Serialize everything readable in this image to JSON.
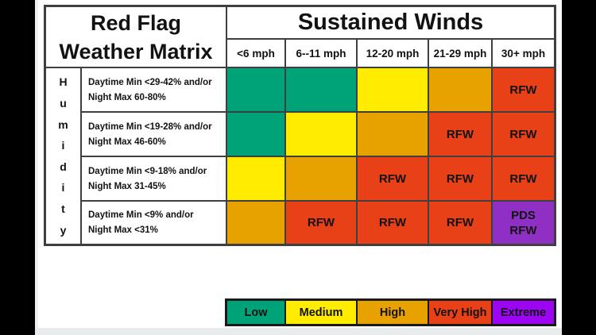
{
  "title": {
    "line1": "Red Flag",
    "line2": "Weather Matrix"
  },
  "winds": {
    "header": "Sustained Winds",
    "columns": [
      "<6 mph",
      "6--11 mph",
      "12-20 mph",
      "21-29 mph",
      "30+ mph"
    ]
  },
  "humidity": {
    "word": "Humidity",
    "letters": [
      "H",
      "u",
      "m",
      "i",
      "d",
      "i",
      "t",
      "y"
    ]
  },
  "rows": [
    {
      "criteria": {
        "line1": "Daytime Min <29-42% and/or",
        "line2": "Night Max 60-80%"
      },
      "cells": [
        {
          "level": "low",
          "label": ""
        },
        {
          "level": "low",
          "label": ""
        },
        {
          "level": "medium",
          "label": ""
        },
        {
          "level": "high",
          "label": ""
        },
        {
          "level": "very_high",
          "label": "RFW"
        }
      ]
    },
    {
      "criteria": {
        "line1": "Daytime Min <19-28% and/or",
        "line2": "Night Max 46-60%"
      },
      "cells": [
        {
          "level": "low",
          "label": ""
        },
        {
          "level": "medium",
          "label": ""
        },
        {
          "level": "high",
          "label": ""
        },
        {
          "level": "very_high",
          "label": "RFW"
        },
        {
          "level": "very_high",
          "label": "RFW"
        }
      ]
    },
    {
      "criteria": {
        "line1": "Daytime Min <9-18% and/or",
        "line2": "Night Max 31-45%"
      },
      "cells": [
        {
          "level": "medium",
          "label": ""
        },
        {
          "level": "high",
          "label": ""
        },
        {
          "level": "very_high",
          "label": "RFW"
        },
        {
          "level": "very_high",
          "label": "RFW"
        },
        {
          "level": "very_high",
          "label": "RFW"
        }
      ]
    },
    {
      "criteria": {
        "line1": "Daytime Min <9% and/or",
        "line2": "Night Max <31%"
      },
      "cells": [
        {
          "level": "high",
          "label": ""
        },
        {
          "level": "very_high",
          "label": "RFW"
        },
        {
          "level": "very_high",
          "label": "RFW"
        },
        {
          "level": "very_high",
          "label": "RFW"
        },
        {
          "level": "extreme",
          "label": "PDS\nRFW"
        }
      ]
    }
  ],
  "legend": [
    {
      "label": "Low",
      "level": "low"
    },
    {
      "label": "Medium",
      "level": "medium"
    },
    {
      "label": "High",
      "level": "high"
    },
    {
      "label": "Very High",
      "level": "very_high"
    },
    {
      "label": "Extreme",
      "level": "extreme_bright"
    }
  ],
  "colors": {
    "low": "#00A377",
    "medium": "#FFEC00",
    "high": "#E8A200",
    "very_high": "#E84118",
    "extreme": "#8F2FC4",
    "extreme_bright": "#9B05F2"
  },
  "chart_data": {
    "type": "heatmap",
    "title": "Red Flag Weather Matrix",
    "x_header": "Sustained Winds",
    "x_categories": [
      "<6 mph",
      "6--11 mph",
      "12-20 mph",
      "21-29 mph",
      "30+ mph"
    ],
    "y_axis_label": "Humidity",
    "y_categories": [
      "Daytime Min <29-42% and/or Night Max 60-80%",
      "Daytime Min <19-28% and/or Night Max 46-60%",
      "Daytime Min <9-18% and/or Night Max 31-45%",
      "Daytime Min <9% and/or Night Max <31%"
    ],
    "levels": [
      [
        "Low",
        "Low",
        "Medium",
        "High",
        "Very High"
      ],
      [
        "Low",
        "Medium",
        "High",
        "Very High",
        "Very High"
      ],
      [
        "Medium",
        "High",
        "Very High",
        "Very High",
        "Very High"
      ],
      [
        "High",
        "Very High",
        "Very High",
        "Very High",
        "Extreme"
      ]
    ],
    "cell_labels": [
      [
        "",
        "",
        "",
        "",
        "RFW"
      ],
      [
        "",
        "",
        "",
        "RFW",
        "RFW"
      ],
      [
        "",
        "",
        "RFW",
        "RFW",
        "RFW"
      ],
      [
        "",
        "RFW",
        "RFW",
        "RFW",
        "PDS RFW"
      ]
    ],
    "legend_entries": [
      "Low",
      "Medium",
      "High",
      "Very High",
      "Extreme"
    ],
    "legend_position": "bottom-right"
  }
}
